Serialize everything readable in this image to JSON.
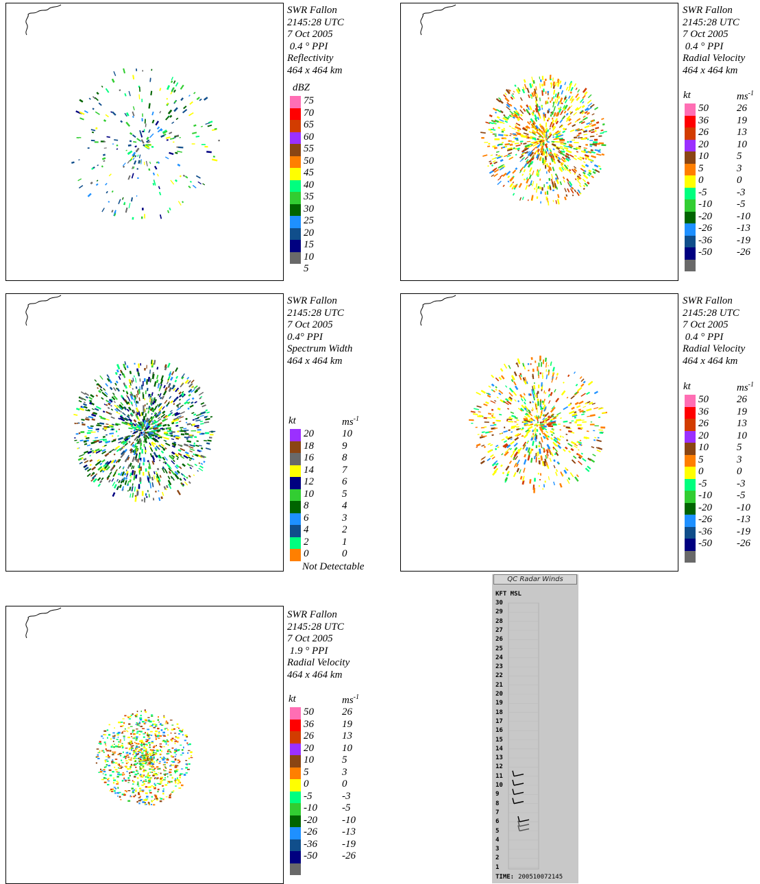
{
  "panels": [
    {
      "id": "reflectivity-0.4",
      "info": [
        "SWR Fallon",
        "2145:28 UTC",
        "7 Oct 2005",
        " 0.4 ° PPI",
        "Reflectivity",
        "464 x 464 km"
      ],
      "legend": {
        "kind": "single",
        "unit1": "dBZ",
        "rows": [
          {
            "color": "#ff6eb4",
            "v1": "75"
          },
          {
            "color": "#ff0000",
            "v1": "70"
          },
          {
            "color": "#d23c00",
            "v1": "65"
          },
          {
            "color": "#9b30ff",
            "v1": "60"
          },
          {
            "color": "#8b4513",
            "v1": "55"
          },
          {
            "color": "#ff7f00",
            "v1": "50"
          },
          {
            "color": "#ffff00",
            "v1": "45"
          },
          {
            "color": "#00ff7f",
            "v1": "40"
          },
          {
            "color": "#32cd32",
            "v1": "35"
          },
          {
            "color": "#006400",
            "v1": "30"
          },
          {
            "color": "#1e90ff",
            "v1": "25"
          },
          {
            "color": "#104e8b",
            "v1": "20"
          },
          {
            "color": "#000080",
            "v1": "15"
          },
          {
            "color": "#696969",
            "v1": "10"
          },
          {
            "color": "",
            "v1": "5"
          }
        ],
        "footer": ""
      }
    },
    {
      "id": "velocity-0.4-a",
      "info": [
        "SWR Fallon",
        "2145:28 UTC",
        "7 Oct 2005",
        " 0.4 ° PPI",
        "Radial Velocity",
        "464 x 464 km"
      ],
      "legend": {
        "kind": "double",
        "unit1": "kt",
        "unit2": "ms-1",
        "rows": [
          {
            "color": "#ff6eb4",
            "v1": "50",
            "v2": "26"
          },
          {
            "color": "#ff0000",
            "v1": "36",
            "v2": "19"
          },
          {
            "color": "#d23c00",
            "v1": "26",
            "v2": "13"
          },
          {
            "color": "#9b30ff",
            "v1": "20",
            "v2": "10"
          },
          {
            "color": "#8b4513",
            "v1": "10",
            "v2": "5"
          },
          {
            "color": "#ff7f00",
            "v1": "5",
            "v2": "3"
          },
          {
            "color": "#ffff00",
            "v1": "0",
            "v2": "0"
          },
          {
            "color": "#00ff7f",
            "v1": "-5",
            "v2": "-3"
          },
          {
            "color": "#32cd32",
            "v1": "-10",
            "v2": "-5"
          },
          {
            "color": "#006400",
            "v1": "-20",
            "v2": "-10"
          },
          {
            "color": "#1e90ff",
            "v1": "-26",
            "v2": "-13"
          },
          {
            "color": "#104e8b",
            "v1": "-36",
            "v2": "-19"
          },
          {
            "color": "#000080",
            "v1": "-50",
            "v2": "-26"
          },
          {
            "color": "#696969",
            "v1": "",
            "v2": ""
          }
        ],
        "footer": ""
      }
    },
    {
      "id": "spectrum-width-0.4",
      "info": [
        "SWR Fallon",
        "2145:28 UTC",
        "7 Oct 2005",
        "0.4° PPI",
        "Spectrum Width",
        "464 x 464 km"
      ],
      "legend": {
        "kind": "double",
        "unit1": "kt",
        "unit2": "ms-1",
        "rows": [
          {
            "color": "#9b30ff",
            "v1": "20",
            "v2": "10"
          },
          {
            "color": "#8b4513",
            "v1": "18",
            "v2": "9"
          },
          {
            "color": "#696969",
            "v1": "16",
            "v2": "8"
          },
          {
            "color": "#ffff00",
            "v1": "14",
            "v2": "7"
          },
          {
            "color": "#000080",
            "v1": "12",
            "v2": "6"
          },
          {
            "color": "#32cd32",
            "v1": "10",
            "v2": "5"
          },
          {
            "color": "#006400",
            "v1": "8",
            "v2": "4"
          },
          {
            "color": "#1e90ff",
            "v1": "6",
            "v2": "3"
          },
          {
            "color": "#104e8b",
            "v1": "4",
            "v2": "2"
          },
          {
            "color": "#00ff7f",
            "v1": "2",
            "v2": "1"
          },
          {
            "color": "#ff7f00",
            "v1": "0",
            "v2": "0"
          }
        ],
        "footer": "Not Detectable"
      }
    },
    {
      "id": "velocity-0.4-b",
      "info": [
        "SWR Fallon",
        "2145:28 UTC",
        "7 Oct 2005",
        " 0.4 ° PPI",
        "Radial Velocity",
        "464 x 464 km"
      ],
      "legend": {
        "kind": "double",
        "unit1": "kt",
        "unit2": "ms-1",
        "rows": [
          {
            "color": "#ff6eb4",
            "v1": "50",
            "v2": "26"
          },
          {
            "color": "#ff0000",
            "v1": "36",
            "v2": "19"
          },
          {
            "color": "#d23c00",
            "v1": "26",
            "v2": "13"
          },
          {
            "color": "#9b30ff",
            "v1": "20",
            "v2": "10"
          },
          {
            "color": "#8b4513",
            "v1": "10",
            "v2": "5"
          },
          {
            "color": "#ff7f00",
            "v1": "5",
            "v2": "3"
          },
          {
            "color": "#ffff00",
            "v1": "0",
            "v2": "0"
          },
          {
            "color": "#00ff7f",
            "v1": "-5",
            "v2": "-3"
          },
          {
            "color": "#32cd32",
            "v1": "-10",
            "v2": "-5"
          },
          {
            "color": "#006400",
            "v1": "-20",
            "v2": "-10"
          },
          {
            "color": "#1e90ff",
            "v1": "-26",
            "v2": "-13"
          },
          {
            "color": "#104e8b",
            "v1": "-36",
            "v2": "-19"
          },
          {
            "color": "#000080",
            "v1": "-50",
            "v2": "-26"
          },
          {
            "color": "#696969",
            "v1": "",
            "v2": ""
          }
        ],
        "footer": ""
      }
    },
    {
      "id": "velocity-1.9",
      "info": [
        "SWR Fallon",
        "2145:28 UTC",
        "7 Oct 2005",
        " 1.9 ° PPI",
        "Radial Velocity",
        "464 x 464 km"
      ],
      "legend": {
        "kind": "double",
        "unit1": "kt",
        "unit2": "ms-1",
        "rows": [
          {
            "color": "#ff6eb4",
            "v1": "50",
            "v2": "26"
          },
          {
            "color": "#ff0000",
            "v1": "36",
            "v2": "19"
          },
          {
            "color": "#d23c00",
            "v1": "26",
            "v2": "13"
          },
          {
            "color": "#9b30ff",
            "v1": "20",
            "v2": "10"
          },
          {
            "color": "#8b4513",
            "v1": "10",
            "v2": "5"
          },
          {
            "color": "#ff7f00",
            "v1": "5",
            "v2": "3"
          },
          {
            "color": "#ffff00",
            "v1": "0",
            "v2": "0"
          },
          {
            "color": "#00ff7f",
            "v1": "-5",
            "v2": "-3"
          },
          {
            "color": "#32cd32",
            "v1": "-10",
            "v2": "-5"
          },
          {
            "color": "#006400",
            "v1": "-20",
            "v2": "-10"
          },
          {
            "color": "#1e90ff",
            "v1": "-26",
            "v2": "-13"
          },
          {
            "color": "#104e8b",
            "v1": "-36",
            "v2": "-19"
          },
          {
            "color": "#000080",
            "v1": "-50",
            "v2": "-26"
          },
          {
            "color": "#696969",
            "v1": "",
            "v2": ""
          }
        ],
        "footer": ""
      }
    }
  ],
  "qc_winds": {
    "title": "QC Radar Winds",
    "header": "KFT MSL",
    "levels": [
      "30",
      "29",
      "28",
      "27",
      "26",
      "25",
      "24",
      "23",
      "22",
      "21",
      "20",
      "19",
      "18",
      "17",
      "16",
      "15",
      "14",
      "13",
      "12",
      "11",
      "10",
      "9",
      "8",
      "7",
      "6",
      "5",
      "4",
      "3",
      "2",
      "1"
    ],
    "wind_levels_kft": [
      11,
      10,
      9,
      8,
      6,
      5.5,
      5
    ],
    "time_label": "TIME:",
    "time_value": "200510072145"
  }
}
